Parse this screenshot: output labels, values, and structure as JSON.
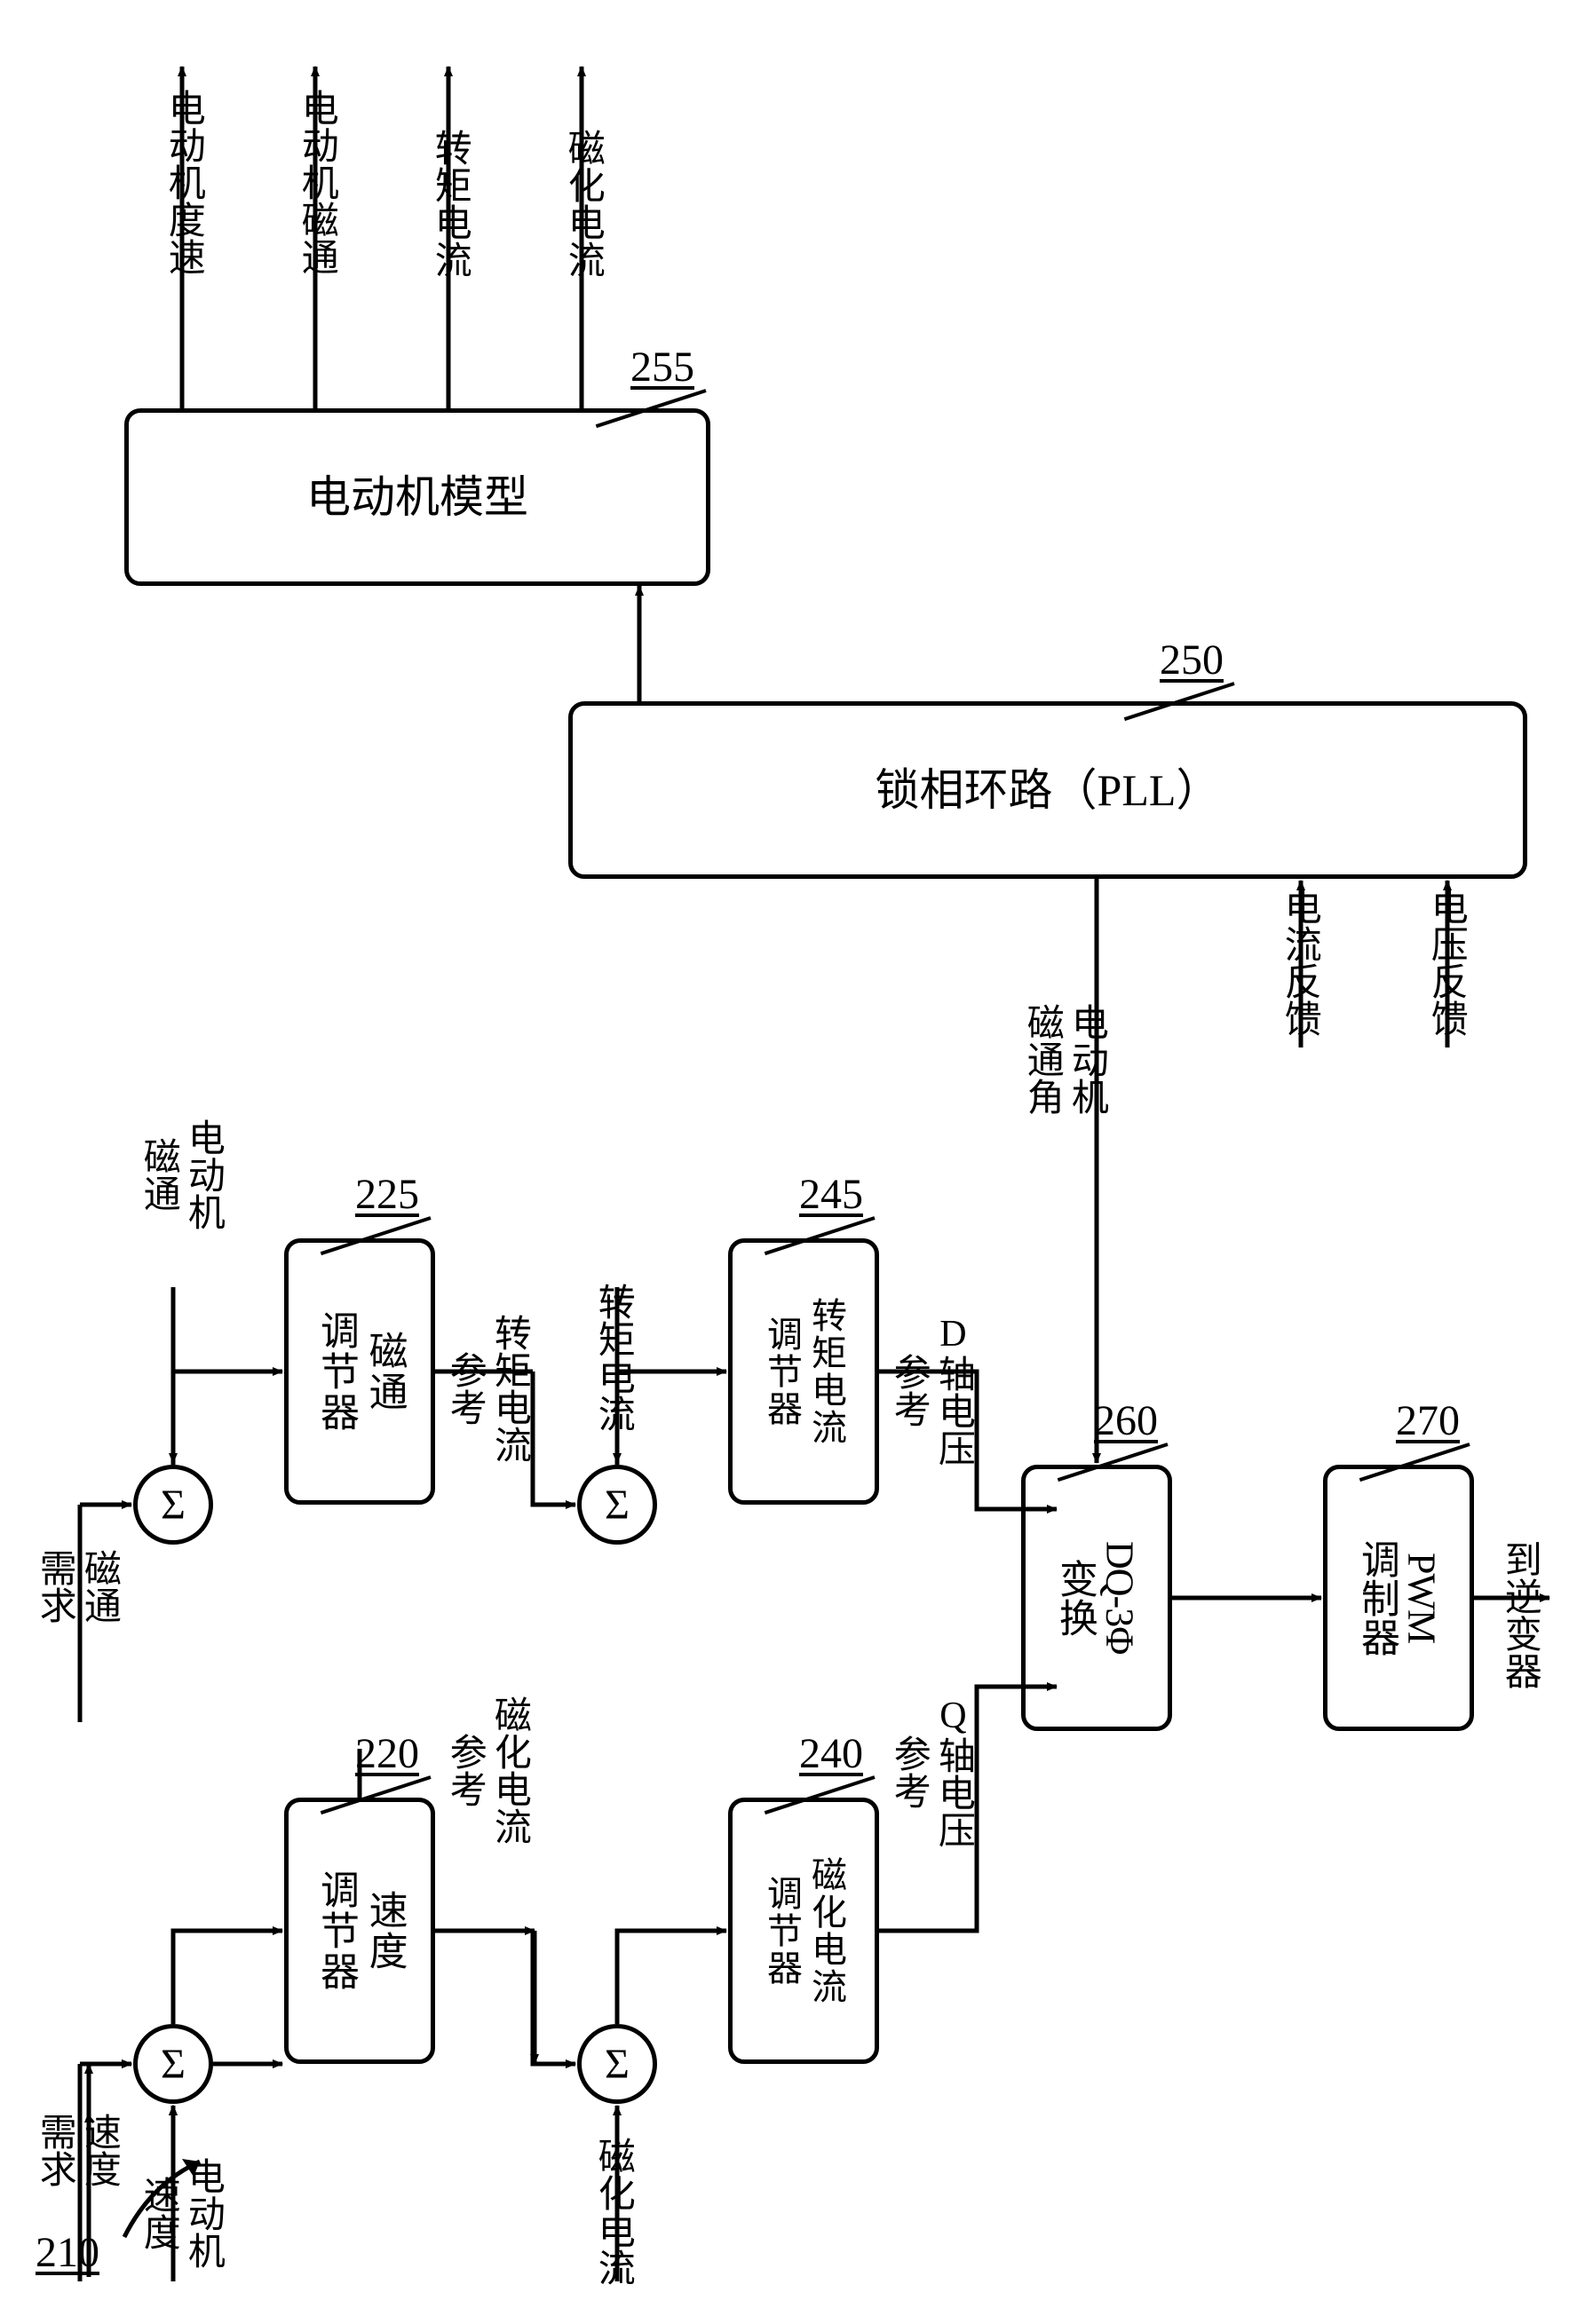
{
  "figure_ref": "210",
  "inputs": {
    "speed_demand": "速度\n需求",
    "motor_speed_fb": "电动机\n速度",
    "flux_demand": "磁通\n需求",
    "motor_flux_fb": "电动机\n磁通",
    "mag_current_fb": "磁化电流",
    "torque_current_fb": "转矩电流",
    "current_fb": "电流反馈",
    "voltage_fb": "电压反馈"
  },
  "signals": {
    "mag_current_ref": "磁化电流\n参考",
    "torque_current_ref": "转矩电流\n参考",
    "q_axis_volt_ref": "Q轴电压\n参考",
    "d_axis_volt_ref": "D轴电压\n参考",
    "motor_flux_angle": "电动机\n磁通角",
    "to_inverter": "到逆变器"
  },
  "blocks": {
    "speed_reg": {
      "label": "速度\n调节器",
      "ref": "220"
    },
    "flux_reg": {
      "label": "磁通\n调节器",
      "ref": "225"
    },
    "mag_reg": {
      "label": "磁化电流\n调节器",
      "ref": "240"
    },
    "torque_reg": {
      "label": "转矩电流\n调节器",
      "ref": "245"
    },
    "dq3": {
      "label_latin": "DQ-3Φ",
      "label_cjk": "变换",
      "ref": "260"
    },
    "pwm": {
      "label_latin": "PWM",
      "label_cjk": "调制器",
      "ref": "270"
    },
    "pll": {
      "label": "锁相环路（PLL）",
      "ref": "250"
    },
    "model": {
      "label": "电动机模型",
      "ref": "255"
    }
  },
  "model_outputs": {
    "motor_speed": "电动机度速",
    "motor_flux": "电动机磁通",
    "torque_current": "转矩电流",
    "mag_current": "磁化电流"
  },
  "sigma": "Σ",
  "style": {
    "stroke": "#000000",
    "stroke_width": 5,
    "arrow_len": 28,
    "arrow_w": 18,
    "bg": "#ffffff",
    "font_size_block": 44,
    "font_size_label": 42,
    "font_size_ref": 48
  }
}
